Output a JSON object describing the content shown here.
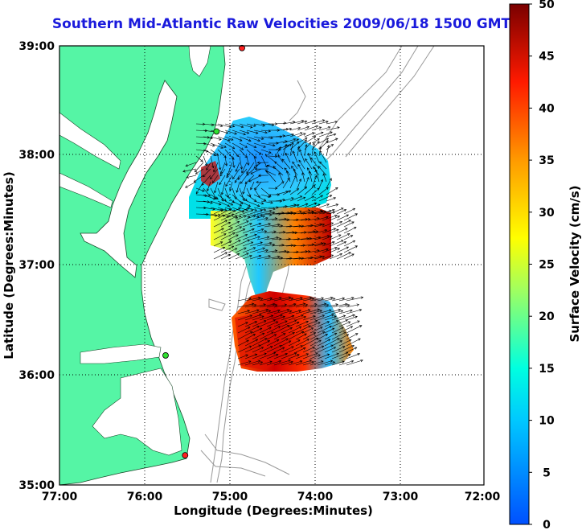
{
  "title": "Southern Mid-Atlantic Raw Velocities 2009/06/18 1500 GMT",
  "xaxis": {
    "label": "Longitude (Degrees:Minutes)",
    "ticks": [
      "77:00",
      "76:00",
      "75:00",
      "74:00",
      "73:00",
      "72:00"
    ]
  },
  "yaxis": {
    "label": "Latitude (Degrees:Minutes)",
    "ticks": [
      "39:00",
      "38:00",
      "37:00",
      "36:00",
      "35:00"
    ]
  },
  "colorbar": {
    "label": "Surface Velocity (cm/s)",
    "ticks": [
      "50",
      "45",
      "40",
      "35",
      "30",
      "25",
      "20",
      "15",
      "10",
      "5",
      "0"
    ],
    "min": 0,
    "max": 50
  },
  "colors": {
    "land": "#55f5a5",
    "title": "#1a1adc",
    "station": "#ff2020",
    "station_alt": "#30e030"
  },
  "map_extent": {
    "lon": [
      -77.0,
      -72.0
    ],
    "lat": [
      35.0,
      39.0
    ]
  },
  "stations": [
    {
      "lon": -74.85,
      "lat": 38.98,
      "type": "red"
    },
    {
      "lon": -75.15,
      "lat": 38.22,
      "type": "green"
    },
    {
      "lon": -75.75,
      "lat": 36.18,
      "type": "green"
    },
    {
      "lon": -75.52,
      "lat": 35.27,
      "type": "red"
    }
  ]
}
